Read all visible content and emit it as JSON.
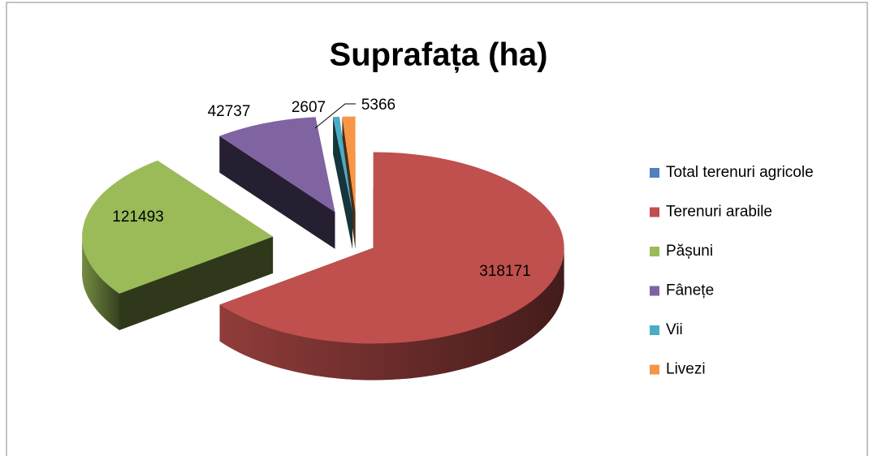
{
  "chart_data": {
    "type": "pie",
    "title": "Suprafața (ha)",
    "categories": [
      "Total terenuri agricole",
      "Terenuri arabile",
      "Pășuni",
      "Fânețe",
      "Vii",
      "Livezi"
    ],
    "values": [
      null,
      318171,
      121493,
      42737,
      2607,
      5366
    ],
    "colors": [
      "#4f81bd",
      "#c0504d",
      "#9bbb59",
      "#8064a2",
      "#4bacc6",
      "#f79646"
    ],
    "legend": "right"
  }
}
